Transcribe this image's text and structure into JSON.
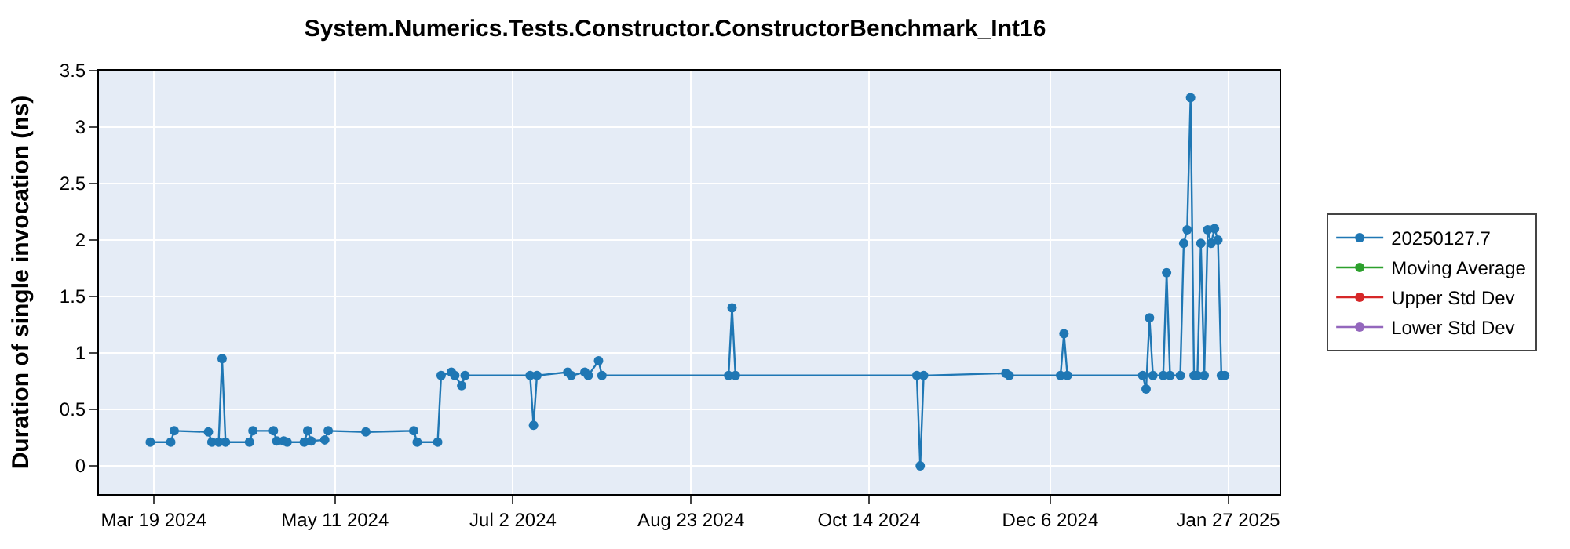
{
  "chart_data": {
    "type": "line",
    "title": "System.Numerics.Tests.Constructor.ConstructorBenchmark_Int16",
    "ylabel": "Duration of single invocation (ns)",
    "x": [
      "2024-03-18",
      "2024-03-24",
      "2024-03-25",
      "2024-04-04",
      "2024-04-05",
      "2024-04-07",
      "2024-04-08",
      "2024-04-09",
      "2024-04-16",
      "2024-04-17",
      "2024-04-23",
      "2024-04-24",
      "2024-04-26",
      "2024-04-27",
      "2024-05-02",
      "2024-05-03",
      "2024-05-04",
      "2024-05-08",
      "2024-05-09",
      "2024-05-20",
      "2024-06-03",
      "2024-06-04",
      "2024-06-10",
      "2024-06-11",
      "2024-06-14",
      "2024-06-15",
      "2024-06-17",
      "2024-06-18",
      "2024-07-07",
      "2024-07-08",
      "2024-07-09",
      "2024-07-18",
      "2024-07-19",
      "2024-07-23",
      "2024-07-24",
      "2024-07-27",
      "2024-07-28",
      "2024-09-03",
      "2024-09-04",
      "2024-09-05",
      "2024-10-28",
      "2024-10-29",
      "2024-10-30",
      "2024-11-23",
      "2024-11-24",
      "2024-12-09",
      "2024-12-10",
      "2024-12-11",
      "2025-01-02",
      "2025-01-03",
      "2025-01-04",
      "2025-01-05",
      "2025-01-08",
      "2025-01-09",
      "2025-01-10",
      "2025-01-13",
      "2025-01-14",
      "2025-01-15",
      "2025-01-16",
      "2025-01-17",
      "2025-01-18",
      "2025-01-19",
      "2025-01-20",
      "2025-01-21",
      "2025-01-22",
      "2025-01-23",
      "2025-01-24",
      "2025-01-25",
      "2025-01-26"
    ],
    "series": [
      {
        "name": "20250127.7",
        "color": "#1f77b4",
        "values": [
          0.21,
          0.21,
          0.31,
          0.3,
          0.21,
          0.21,
          0.95,
          0.21,
          0.21,
          0.31,
          0.31,
          0.22,
          0.22,
          0.21,
          0.21,
          0.31,
          0.22,
          0.23,
          0.31,
          0.3,
          0.31,
          0.21,
          0.21,
          0.8,
          0.83,
          0.8,
          0.71,
          0.8,
          0.8,
          0.36,
          0.8,
          0.83,
          0.8,
          0.83,
          0.8,
          0.93,
          0.8,
          0.8,
          1.4,
          0.8,
          0.8,
          0.0,
          0.8,
          0.82,
          0.8,
          0.8,
          1.17,
          0.8,
          0.8,
          0.68,
          1.31,
          0.8,
          0.8,
          1.71,
          0.8,
          0.8,
          1.97,
          2.09,
          3.26,
          0.8,
          0.8,
          1.97,
          0.8,
          2.09,
          1.97,
          2.1,
          2.0,
          0.8,
          0.8
        ]
      },
      {
        "name": "Moving Average",
        "color": "#2ca02c",
        "values": [
          null,
          null,
          null,
          null,
          null,
          null,
          null,
          null,
          null,
          null,
          null,
          null,
          null,
          null,
          null,
          null,
          null,
          null,
          null,
          null,
          null,
          null,
          null,
          null,
          null,
          null,
          null,
          null,
          null,
          null,
          null,
          null,
          null,
          null,
          null,
          null,
          null,
          null,
          null,
          null,
          null,
          null,
          null,
          null,
          null,
          null,
          null,
          null,
          null,
          null,
          null,
          null,
          null,
          null,
          null,
          null,
          null,
          null,
          null,
          null,
          null,
          null,
          null,
          null,
          null,
          null,
          null,
          null,
          null
        ]
      },
      {
        "name": "Upper Std Dev",
        "color": "#d62728",
        "values": [
          null,
          null,
          null,
          null,
          null,
          null,
          null,
          null,
          null,
          null,
          null,
          null,
          null,
          null,
          null,
          null,
          null,
          null,
          null,
          null,
          null,
          null,
          null,
          null,
          null,
          null,
          null,
          null,
          null,
          null,
          null,
          null,
          null,
          null,
          null,
          null,
          null,
          null,
          null,
          null,
          null,
          null,
          null,
          null,
          null,
          null,
          null,
          null,
          null,
          null,
          null,
          null,
          null,
          null,
          null,
          null,
          null,
          null,
          null,
          null,
          null,
          null,
          null,
          null,
          null,
          null,
          null,
          null,
          null
        ]
      },
      {
        "name": "Lower Std Dev",
        "color": "#9467bd",
        "values": [
          null,
          null,
          null,
          null,
          null,
          null,
          null,
          null,
          null,
          null,
          null,
          null,
          null,
          null,
          null,
          null,
          null,
          null,
          null,
          null,
          null,
          null,
          null,
          null,
          null,
          null,
          null,
          null,
          null,
          null,
          null,
          null,
          null,
          null,
          null,
          null,
          null,
          null,
          null,
          null,
          null,
          null,
          null,
          null,
          null,
          null,
          null,
          null,
          null,
          null,
          null,
          null,
          null,
          null,
          null,
          null,
          null,
          null,
          null,
          null,
          null,
          null,
          null,
          null,
          null,
          null,
          null,
          null,
          null
        ]
      }
    ],
    "xlim": [
      "2024-03-03",
      "2025-02-11"
    ],
    "xticks": [
      {
        "value": "2024-03-19",
        "label": "Mar 19 2024"
      },
      {
        "value": "2024-05-11",
        "label": "May 11 2024"
      },
      {
        "value": "2024-07-02",
        "label": "Jul 2 2024"
      },
      {
        "value": "2024-08-23",
        "label": "Aug 23 2024"
      },
      {
        "value": "2024-10-14",
        "label": "Oct 14 2024"
      },
      {
        "value": "2024-12-06",
        "label": "Dec 6 2024"
      },
      {
        "value": "2025-01-27",
        "label": "Jan 27 2025"
      }
    ],
    "ylim": [
      -0.25,
      3.5
    ],
    "yticks": [
      0,
      0.5,
      1,
      1.5,
      2,
      2.5,
      3,
      3.5
    ],
    "grid": true,
    "legend": "right",
    "marker": "circle",
    "line_style": "solid"
  }
}
